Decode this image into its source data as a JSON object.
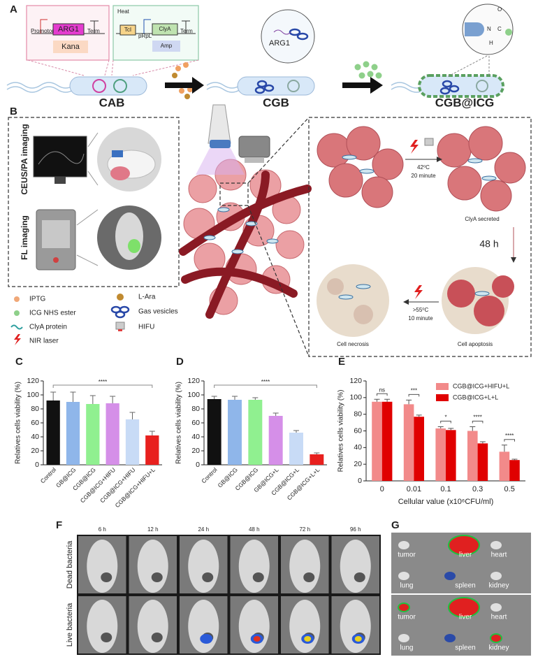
{
  "panel_a": {
    "label": "A",
    "plasmid_1": {
      "promoter": "Promotor",
      "gene": "ARG1",
      "terminator": "Term",
      "marker": "Kana"
    },
    "plasmid_2": {
      "heat": "Heat",
      "repressor": "TcI",
      "promoter": "pRpL",
      "gene": "ClyA",
      "terminator": "Term",
      "marker": "Amp"
    },
    "zoom_gene": "ARG1",
    "bond": {
      "o": "O",
      "c": "C",
      "n": "N",
      "h": "H"
    },
    "stages": [
      "CAB",
      "CGB",
      "CGB@ICG"
    ]
  },
  "panel_b": {
    "label": "B",
    "imaging": [
      "CEUS/PA imaging",
      "FL imaging"
    ],
    "legend": [
      "IPTG",
      "ICG NHS ester",
      "ClyA protein",
      "NIR laser",
      "L-Ara",
      "Gas vesicles",
      "HIFU"
    ],
    "steps": {
      "heat_1": "42⁰C",
      "time_1": "20 minute",
      "secreted": "ClyA secreted",
      "delay": "48 h",
      "heat_2": ">55⁰C",
      "time_2": "10 minute",
      "necrosis": "Cell necrosis",
      "apoptosis": "Cell apoptosis"
    }
  },
  "chart_data": [
    {
      "type": "bar",
      "label": "C",
      "ylabel": "Relatives cells viability (%)",
      "categories": [
        "Control",
        "GB@ICG",
        "CGB@ICG",
        "CGB@ICG+HIFU",
        "CGB@ICG+HIFU",
        "CGB@ICG+HIFU+L"
      ],
      "values": [
        92,
        90,
        87,
        88,
        65,
        42
      ],
      "errors": [
        12,
        14,
        12,
        10,
        10,
        6
      ],
      "colors": [
        "#111111",
        "#8fb6ea",
        "#90f090",
        "#d58fe8",
        "#c8dbf6",
        "#e8201e"
      ],
      "ylim": [
        0,
        120
      ],
      "yticks": [
        0,
        20,
        40,
        60,
        80,
        100,
        120
      ],
      "significance": "****"
    },
    {
      "type": "bar",
      "label": "D",
      "ylabel": "Relatives cells viability (%)",
      "categories": [
        "Control",
        "GB@ICG",
        "CGB@ICG",
        "GB@ICG+L",
        "CGB@ICG+L",
        "CGB@ICG+L+L"
      ],
      "values": [
        94,
        93,
        93,
        70,
        46,
        15
      ],
      "errors": [
        4,
        5,
        3,
        4,
        3,
        2
      ],
      "colors": [
        "#111111",
        "#8fb6ea",
        "#90f090",
        "#d58fe8",
        "#c8dbf6",
        "#e8201e"
      ],
      "ylim": [
        0,
        120
      ],
      "yticks": [
        0,
        20,
        40,
        60,
        80,
        100,
        120
      ],
      "significance": "****"
    },
    {
      "type": "grouped_bar",
      "label": "E",
      "ylabel": "Relatives cells viability (%)",
      "xlabel": "Cellular value (x10⁶CFU/ml)",
      "categories": [
        "0",
        "0.01",
        "0.1",
        "0.3",
        "0.5"
      ],
      "series": [
        {
          "name": "CGB@ICG+HIFU+L",
          "color": "#f28a8a",
          "values": [
            95,
            92,
            63,
            60,
            35
          ],
          "errors": [
            3,
            5,
            2,
            5,
            8
          ]
        },
        {
          "name": "CGB@ICG+L+L",
          "color": "#e00000",
          "values": [
            95,
            77,
            61,
            45,
            25
          ],
          "errors": [
            3,
            2,
            2,
            2,
            1
          ]
        }
      ],
      "significance": [
        "ns",
        "***",
        "*",
        "****",
        "****"
      ],
      "legend": "top-right",
      "ylim": [
        0,
        120
      ],
      "yticks": [
        0,
        20,
        40,
        60,
        80,
        100,
        120
      ]
    }
  ],
  "panel_f": {
    "label": "F",
    "times": [
      "6 h",
      "12 h",
      "24 h",
      "48 h",
      "72 h",
      "96 h"
    ],
    "rows": [
      "Dead bacteria",
      "Live bacteria"
    ]
  },
  "panel_g": {
    "label": "G",
    "organs": [
      "tumor",
      "liver",
      "heart",
      "lung",
      "spleen",
      "kidney"
    ]
  }
}
